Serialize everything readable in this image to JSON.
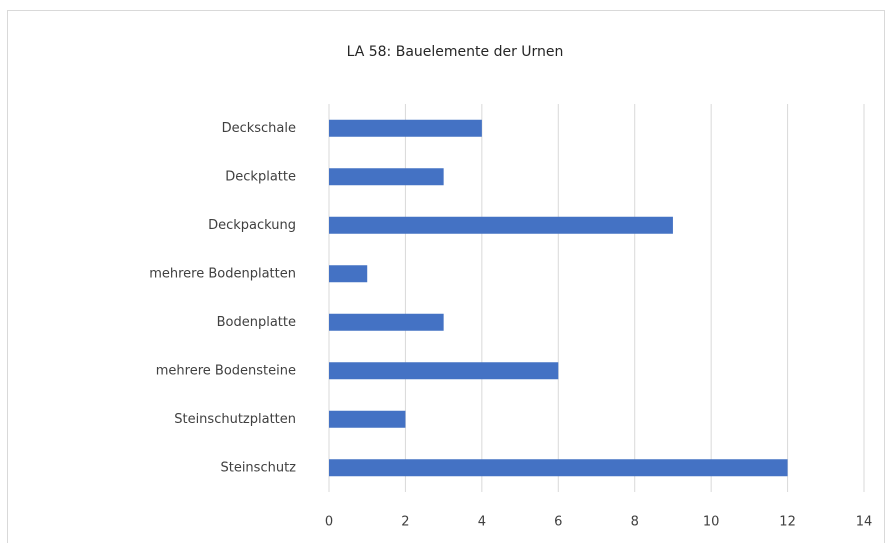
{
  "chart_data": {
    "type": "bar",
    "orientation": "horizontal",
    "title": "LA 58: Bauelemente der Urnen",
    "categories": [
      "Deckschale",
      "Deckplatte",
      "Deckpackung",
      "mehrere Bodenplatten",
      "Bodenplatte",
      "mehrere Bodensteine",
      "Steinschutzplatten",
      "Steinschutz"
    ],
    "values": [
      4,
      3,
      9,
      1,
      3,
      6,
      2,
      12
    ],
    "color": "#4472c4",
    "xlim": [
      0,
      14
    ],
    "xticks": [
      0,
      2,
      4,
      6,
      8,
      10,
      12,
      14
    ],
    "grid": true
  }
}
